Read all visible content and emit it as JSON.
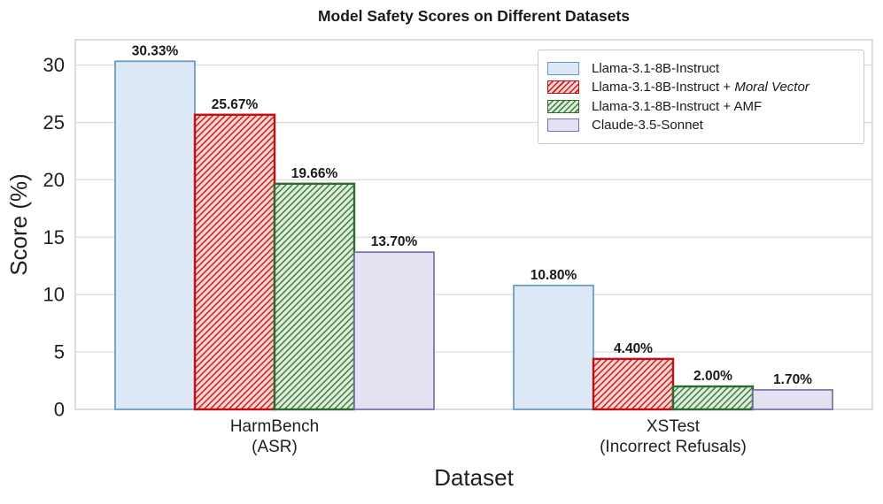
{
  "chart_data": {
    "type": "bar",
    "title": "Model Safety Scores on Different Datasets",
    "xlabel": "Dataset",
    "ylabel": "Score (%)",
    "ylim": [
      0,
      32.2
    ],
    "yticks": [
      0,
      5,
      10,
      15,
      20,
      25,
      30
    ],
    "grid": true,
    "legend_position": "upper right",
    "categories": [
      "HarmBench (ASR)",
      "XSTest (Incorrect Refusals)"
    ],
    "category_lines": [
      [
        "HarmBench",
        "(ASR)"
      ],
      [
        "XSTest",
        "(Incorrect Refusals)"
      ]
    ],
    "series": [
      {
        "name": "Llama-3.1-8B-Instruct",
        "values": [
          30.33,
          10.8
        ],
        "labels": [
          "30.33%",
          "10.80%"
        ],
        "fill": "#dce8f5",
        "edge": "#6598c5",
        "hatch": false
      },
      {
        "name": "Llama-3.1-8B-Instruct + Moral Vector",
        "name_plain": "Llama-3.1-8B-Instruct + ",
        "name_italic": "Moral Vector",
        "values": [
          25.67,
          4.4
        ],
        "labels": [
          "25.67%",
          "4.40%"
        ],
        "fill": "#f5d6d3",
        "edge": "#c01015",
        "hatch": true,
        "hatch_color": "#cc1a1a"
      },
      {
        "name": "Llama-3.1-8B-Instruct + AMF",
        "values": [
          19.66,
          2.0
        ],
        "labels": [
          "19.66%",
          "2.00%"
        ],
        "fill": "#e0eddb",
        "edge": "#2f6b31",
        "hatch": true,
        "hatch_color": "#3e7d41"
      },
      {
        "name": "Claude-3.5-Sonnet",
        "values": [
          13.7,
          1.7
        ],
        "labels": [
          "13.70%",
          "1.70%"
        ],
        "fill": "#e4e1f1",
        "edge": "#7a70ad",
        "hatch": false
      }
    ]
  }
}
